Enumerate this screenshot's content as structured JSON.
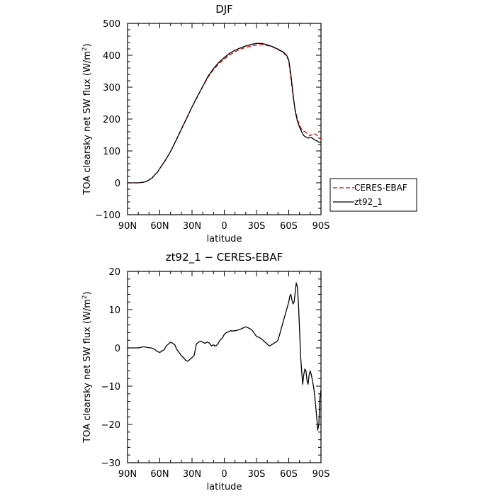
{
  "chart_data": [
    {
      "type": "line",
      "title": "DJF",
      "xlabel": "latitude",
      "ylabel_main": "TOA clearsky net SW flux (W/m",
      "ylabel_sup": "2",
      "ylabel_close": ")",
      "xlim": [
        90,
        -90
      ],
      "ylim": [
        -100,
        500
      ],
      "x_ticks": [
        {
          "value": 90,
          "label": "90N"
        },
        {
          "value": 60,
          "label": "60N"
        },
        {
          "value": 30,
          "label": "30N"
        },
        {
          "value": 0,
          "label": "0"
        },
        {
          "value": -30,
          "label": "30S"
        },
        {
          "value": -60,
          "label": "60S"
        },
        {
          "value": -90,
          "label": "90S"
        }
      ],
      "y_ticks": [
        {
          "value": -100,
          "label": "−100"
        },
        {
          "value": 0,
          "label": "0"
        },
        {
          "value": 100,
          "label": "100"
        },
        {
          "value": 200,
          "label": "200"
        },
        {
          "value": 300,
          "label": "300"
        },
        {
          "value": 400,
          "label": "400"
        },
        {
          "value": 500,
          "label": "500"
        }
      ],
      "legend_position": "right",
      "series": [
        {
          "name": "CERES-EBAF",
          "color": "#cc0000",
          "dash": "dashed",
          "x": [
            90,
            85,
            80,
            75,
            72,
            70,
            67,
            65,
            62,
            60,
            55,
            50,
            45,
            40,
            35,
            30,
            25,
            20,
            15,
            10,
            5,
            0,
            -5,
            -10,
            -15,
            -20,
            -25,
            -30,
            -35,
            -40,
            -45,
            -50,
            -55,
            -58,
            -60,
            -62,
            -64,
            -66,
            -68,
            -70,
            -72,
            -74,
            -76,
            -78,
            -80,
            -82,
            -84,
            -86,
            -88,
            -90
          ],
          "y": [
            0,
            0,
            0,
            2,
            5,
            9,
            16,
            24,
            34,
            45,
            69,
            98,
            133,
            168,
            203,
            238,
            270,
            302,
            332,
            355,
            374,
            388,
            401,
            411,
            419,
            425,
            429,
            432,
            433,
            431,
            426,
            418,
            408,
            398,
            382,
            330,
            270,
            230,
            200,
            180,
            168,
            162,
            158,
            152,
            148,
            152,
            154,
            150,
            142,
            138
          ]
        },
        {
          "name": "zt92_1",
          "color": "#000000",
          "dash": "solid",
          "x": [
            90,
            85,
            80,
            75,
            72,
            70,
            67,
            65,
            62,
            60,
            55,
            50,
            45,
            40,
            35,
            30,
            25,
            20,
            15,
            10,
            5,
            0,
            -5,
            -10,
            -15,
            -20,
            -25,
            -30,
            -35,
            -40,
            -45,
            -50,
            -55,
            -58,
            -60,
            -62,
            -64,
            -66,
            -68,
            -70,
            -72,
            -74,
            -76,
            -78,
            -80,
            -82,
            -84,
            -86,
            -88,
            -90
          ],
          "y": [
            0,
            0,
            0,
            2,
            5,
            9,
            16,
            24,
            34,
            45,
            70,
            98,
            132,
            167,
            202,
            238,
            271,
            303,
            335,
            358,
            378,
            393,
            406,
            416,
            423,
            429,
            434,
            437,
            437,
            433,
            427,
            419,
            410,
            400,
            385,
            340,
            277,
            225,
            195,
            175,
            160,
            148,
            144,
            140,
            143,
            140,
            135,
            132,
            128,
            125
          ]
        }
      ]
    },
    {
      "type": "line",
      "title": "zt92_1 − CERES-EBAF",
      "xlabel": "latitude",
      "ylabel_main": "TOA clearsky net SW flux (W/m",
      "ylabel_sup": "2",
      "ylabel_close": ")",
      "xlim": [
        90,
        -90
      ],
      "ylim": [
        -30,
        20
      ],
      "x_ticks": [
        {
          "value": 90,
          "label": "90N"
        },
        {
          "value": 60,
          "label": "60N"
        },
        {
          "value": 30,
          "label": "30N"
        },
        {
          "value": 0,
          "label": "0"
        },
        {
          "value": -30,
          "label": "30S"
        },
        {
          "value": -60,
          "label": "60S"
        },
        {
          "value": -90,
          "label": "90S"
        }
      ],
      "y_ticks": [
        {
          "value": -30,
          "label": "−30"
        },
        {
          "value": -20,
          "label": "−20"
        },
        {
          "value": -10,
          "label": "−10"
        },
        {
          "value": 0,
          "label": "0"
        },
        {
          "value": 10,
          "label": "10"
        },
        {
          "value": 20,
          "label": "20"
        }
      ],
      "series": [
        {
          "name": "",
          "color": "#000000",
          "dash": "solid",
          "x": [
            90,
            80,
            75,
            71,
            68,
            65,
            63,
            60,
            58,
            56,
            54,
            52,
            50,
            48,
            46,
            44,
            42,
            40,
            38,
            36,
            34,
            32,
            30,
            28,
            26,
            24,
            22,
            20,
            18,
            16,
            14,
            12,
            10,
            8,
            6,
            4,
            2,
            0,
            -2,
            -4,
            -6,
            -8,
            -10,
            -12,
            -14,
            -16,
            -18,
            -20,
            -22,
            -24,
            -26,
            -28,
            -30,
            -32,
            -34,
            -36,
            -38,
            -40,
            -42,
            -44,
            -46,
            -48,
            -50,
            -52,
            -54,
            -56,
            -58,
            -59,
            -60,
            -61,
            -62,
            -63,
            -64,
            -65,
            -66,
            -67,
            -68,
            -69,
            -70,
            -71,
            -72,
            -73,
            -74,
            -75,
            -76,
            -77,
            -78,
            -79,
            -80,
            -81,
            -82,
            -83,
            -84,
            -85,
            -86,
            -87,
            -88,
            -89,
            -90
          ],
          "y": [
            0,
            0,
            0.3,
            0.1,
            0,
            -0.3,
            -0.8,
            -1.2,
            -0.8,
            -0.5,
            0.5,
            1.0,
            1.5,
            1.2,
            0.8,
            -0.5,
            -1.2,
            -2.0,
            -2.5,
            -3.2,
            -3.5,
            -3.0,
            -2.5,
            -2.0,
            1.0,
            1.5,
            1.8,
            1.5,
            1.2,
            1.5,
            1.3,
            0.5,
            0.8,
            0.5,
            1.0,
            2.0,
            2.5,
            3.5,
            4.0,
            4.2,
            4.5,
            4.4,
            4.5,
            4.6,
            4.8,
            5.0,
            5.3,
            5.5,
            5.3,
            5.0,
            4.6,
            3.8,
            3.0,
            2.8,
            2.5,
            2.0,
            1.5,
            1.0,
            0.5,
            0.8,
            1.2,
            1.5,
            2.0,
            4.0,
            6.0,
            8.0,
            10.0,
            11.0,
            12.0,
            13.5,
            14.0,
            12.5,
            11.5,
            12.0,
            14.5,
            17.0,
            16.0,
            12.0,
            5.0,
            -2.0,
            -6.0,
            -9.5,
            -7.0,
            -5.5,
            -6.0,
            -8.5,
            -9.5,
            -7.0,
            -6.0,
            -7.0,
            -8.5,
            -10.0,
            -12.0,
            -15.0,
            -18.0,
            -21.5,
            -20.0,
            -13.0,
            -11.0
          ]
        }
      ]
    }
  ]
}
